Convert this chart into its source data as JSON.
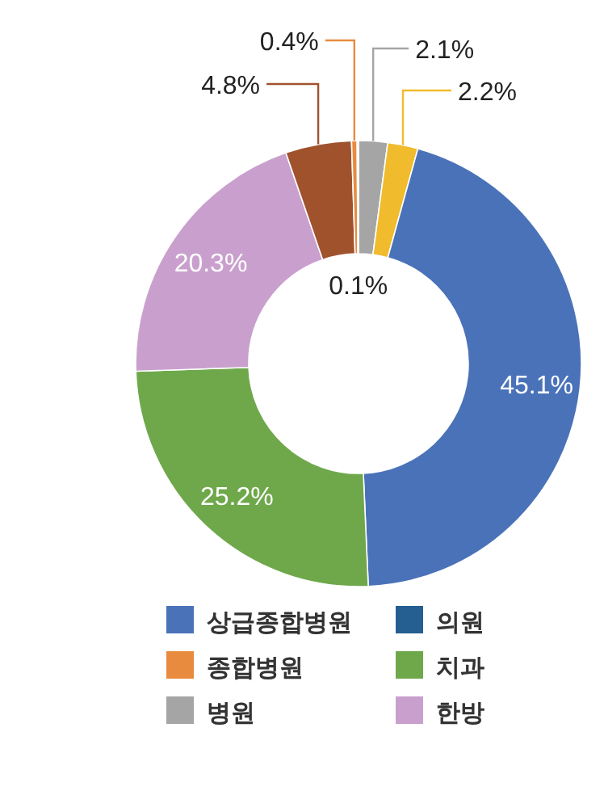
{
  "chart_data": {
    "type": "donut",
    "categories": [
      "병원",
      null,
      "상급종합병원",
      "치과",
      "한방",
      null,
      "종합병원",
      "의원"
    ],
    "values": [
      2.1,
      2.2,
      45.1,
      25.2,
      20.3,
      4.8,
      0.4,
      0.1
    ],
    "colors": [
      "#a5a5a5",
      "#f0bb2c",
      "#4a72b8",
      "#6fa84b",
      "#c9a0cd",
      "#a0522d",
      "#e88b3f",
      "#255e91"
    ],
    "value_labels": [
      "2.1%",
      "2.2%",
      "45.1%",
      "25.2%",
      "20.3%",
      "4.8%",
      "0.4%",
      "0.1%"
    ],
    "legend": "bottom"
  }
}
